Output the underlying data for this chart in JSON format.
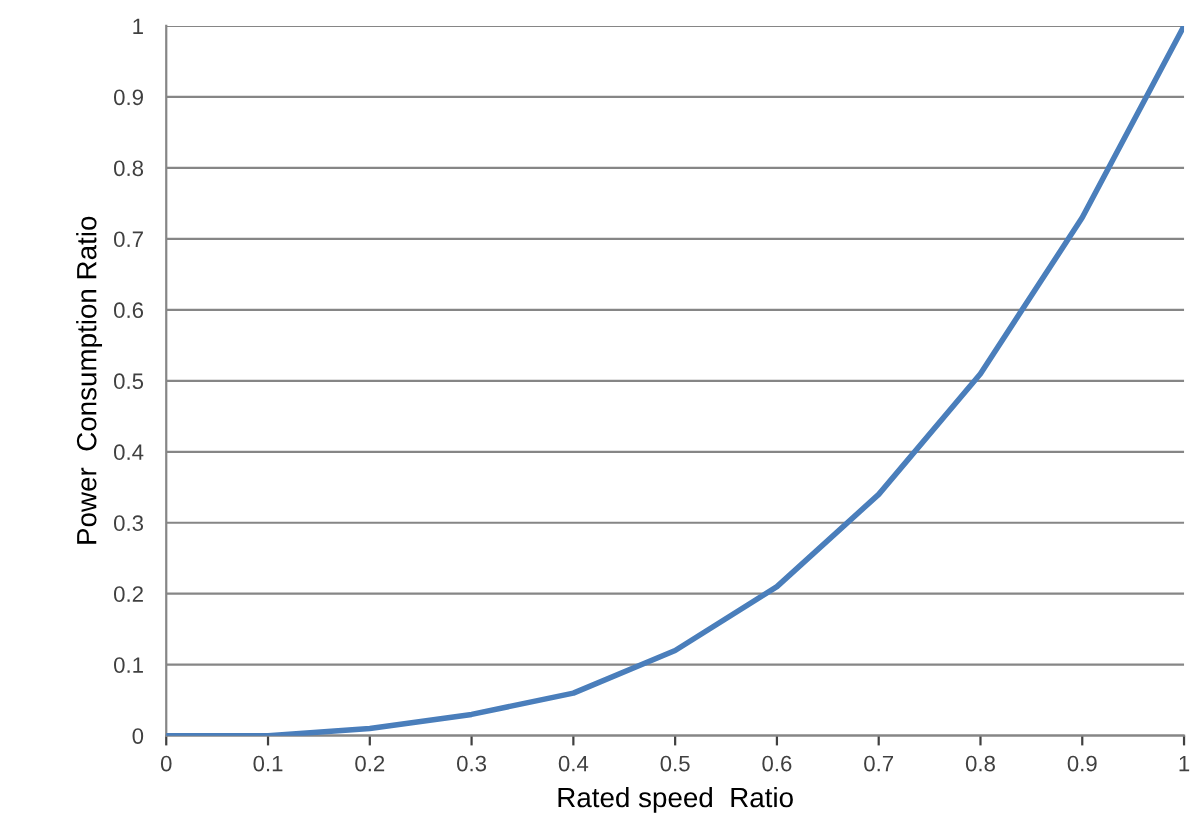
{
  "chart_data": {
    "type": "line",
    "xlabel": "Rated speed  Ratio",
    "ylabel": "Power  Consumption Ratio",
    "x": [
      0,
      0.1,
      0.2,
      0.3,
      0.4,
      0.5,
      0.6,
      0.7,
      0.8,
      0.9,
      1
    ],
    "series": [
      {
        "color": "#4a7ebb",
        "values": [
          0,
          0,
          0.01,
          0.03,
          0.06,
          0.12,
          0.21,
          0.34,
          0.51,
          0.73,
          1
        ]
      }
    ],
    "xlim": [
      0,
      1
    ],
    "ylim": [
      0,
      1
    ],
    "xticks": [
      0,
      0.1,
      0.2,
      0.3,
      0.4,
      0.5,
      0.6,
      0.7,
      0.8,
      0.9,
      1
    ],
    "yticks": [
      0,
      0.1,
      0.2,
      0.3,
      0.4,
      0.5,
      0.6,
      0.7,
      0.8,
      0.9,
      1
    ],
    "grid": "y",
    "marker": "none",
    "line_style": "solid",
    "legend": false
  }
}
